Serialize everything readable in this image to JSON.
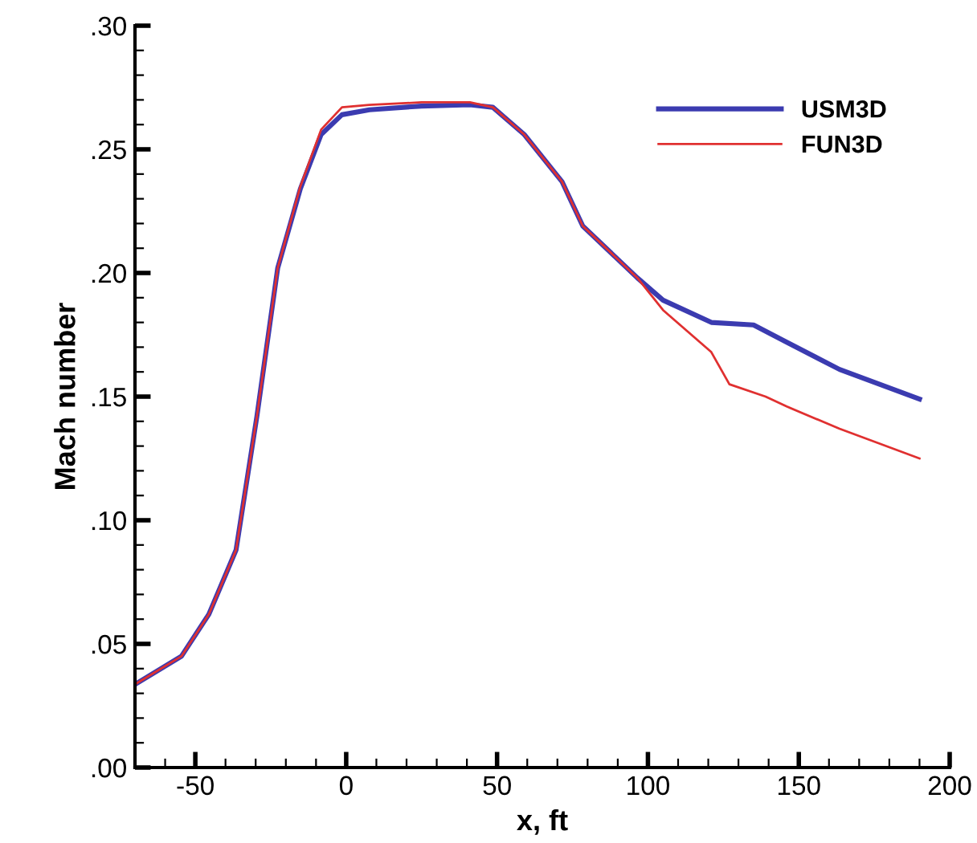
{
  "chart_data": {
    "type": "line",
    "xlabel": "x, ft",
    "ylabel": "Mach number",
    "xlim": [
      -70,
      200
    ],
    "ylim": [
      0,
      0.3
    ],
    "xticks": [
      -50,
      0,
      50,
      100,
      150,
      200
    ],
    "yticks": [
      {
        "value": 0,
        "label": ".00"
      },
      {
        "value": 0.05,
        "label": ".05"
      },
      {
        "value": 0.1,
        "label": ".10"
      },
      {
        "value": 0.15,
        "label": ".15"
      },
      {
        "value": 0.2,
        "label": ".20"
      },
      {
        "value": 0.25,
        "label": ".25"
      },
      {
        "value": 0.3,
        "label": ".30"
      }
    ],
    "grid": false,
    "legend": "top right",
    "marker": "none",
    "line_style": "solid",
    "series": [
      {
        "name": "USM3D",
        "color": "#3b3bb0",
        "x": [
          -69.5,
          -54.6,
          -45.5,
          -36.5,
          -29.6,
          -22.7,
          -15.2,
          -8.3,
          -1.4,
          7.7,
          25,
          41,
          48.6,
          59,
          71.5,
          78.4,
          96.5,
          105,
          121,
          135,
          146,
          163.5,
          190
        ],
        "values": [
          0.034,
          0.045,
          0.062,
          0.088,
          0.142,
          0.202,
          0.234,
          0.256,
          0.264,
          0.266,
          0.2675,
          0.268,
          0.267,
          0.256,
          0.237,
          0.219,
          0.198,
          0.189,
          0.18,
          0.179,
          0.172,
          0.161,
          0.149
        ]
      },
      {
        "name": "FUN3D",
        "color": "#e03030",
        "x": [
          -69.5,
          -54.6,
          -45.5,
          -36.5,
          -29.6,
          -22.7,
          -15.2,
          -8.3,
          -1.4,
          7.7,
          25,
          41,
          48.6,
          59,
          71.5,
          78.4,
          96.5,
          105,
          121,
          127,
          139,
          146,
          163.5,
          190
        ],
        "values": [
          0.034,
          0.045,
          0.062,
          0.088,
          0.142,
          0.202,
          0.235,
          0.258,
          0.267,
          0.268,
          0.269,
          0.269,
          0.267,
          0.256,
          0.237,
          0.219,
          0.198,
          0.185,
          0.168,
          0.155,
          0.15,
          0.146,
          0.137,
          0.125
        ]
      }
    ]
  }
}
